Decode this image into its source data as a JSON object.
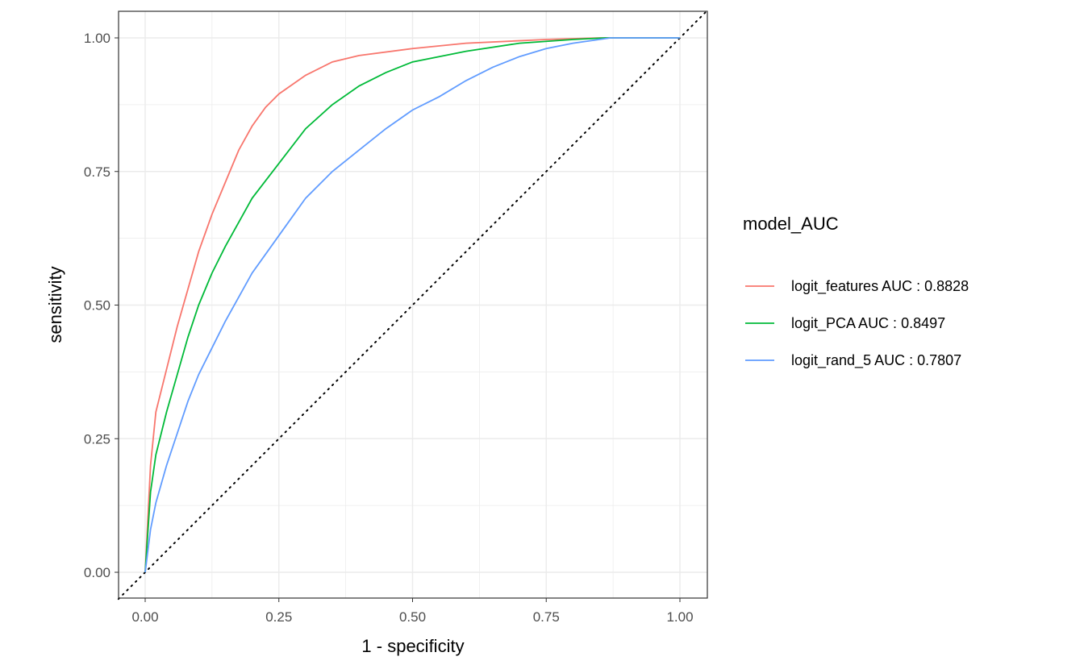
{
  "chart_data": {
    "type": "line",
    "xlabel": "1 - specificity",
    "ylabel": "sensitivity",
    "xlim": [
      0,
      1
    ],
    "ylim": [
      0,
      1
    ],
    "xticks": [
      "0.00",
      "0.25",
      "0.50",
      "0.75",
      "1.00"
    ],
    "yticks": [
      "0.00",
      "0.25",
      "0.50",
      "0.75",
      "1.00"
    ],
    "grid": true,
    "legend_title": "model_AUC",
    "legend_position": "right",
    "reference_line": {
      "style": "dotted",
      "color": "#000000",
      "x": [
        0,
        1
      ],
      "y": [
        0,
        1
      ]
    },
    "series": [
      {
        "name": "logit_features  AUC :  0.8828",
        "color": "#F8766D",
        "x": [
          0,
          0.01,
          0.02,
          0.04,
          0.06,
          0.08,
          0.1,
          0.125,
          0.15,
          0.175,
          0.2,
          0.225,
          0.25,
          0.3,
          0.35,
          0.4,
          0.5,
          0.6,
          0.75,
          0.85,
          1
        ],
        "y": [
          0,
          0.2,
          0.3,
          0.38,
          0.46,
          0.53,
          0.6,
          0.67,
          0.73,
          0.79,
          0.835,
          0.87,
          0.895,
          0.93,
          0.955,
          0.967,
          0.98,
          0.99,
          0.997,
          1,
          1
        ]
      },
      {
        "name": "logit_PCA  AUC :  0.8497",
        "color": "#00BA38",
        "x": [
          0,
          0.01,
          0.02,
          0.04,
          0.06,
          0.08,
          0.1,
          0.125,
          0.15,
          0.2,
          0.25,
          0.3,
          0.35,
          0.4,
          0.45,
          0.5,
          0.6,
          0.7,
          0.8,
          0.86,
          1
        ],
        "y": [
          0,
          0.15,
          0.22,
          0.3,
          0.37,
          0.44,
          0.5,
          0.56,
          0.61,
          0.7,
          0.765,
          0.83,
          0.875,
          0.91,
          0.935,
          0.955,
          0.975,
          0.99,
          0.997,
          1,
          1
        ]
      },
      {
        "name": "logit_rand_5  AUC :  0.7807",
        "color": "#619CFF",
        "x": [
          0,
          0.01,
          0.02,
          0.04,
          0.06,
          0.08,
          0.1,
          0.125,
          0.15,
          0.2,
          0.25,
          0.3,
          0.35,
          0.4,
          0.45,
          0.5,
          0.55,
          0.6,
          0.65,
          0.7,
          0.75,
          0.8,
          0.87,
          1
        ],
        "y": [
          0,
          0.08,
          0.13,
          0.2,
          0.26,
          0.32,
          0.37,
          0.42,
          0.47,
          0.56,
          0.63,
          0.7,
          0.75,
          0.79,
          0.83,
          0.865,
          0.89,
          0.92,
          0.945,
          0.965,
          0.98,
          0.99,
          1,
          1
        ]
      }
    ]
  }
}
